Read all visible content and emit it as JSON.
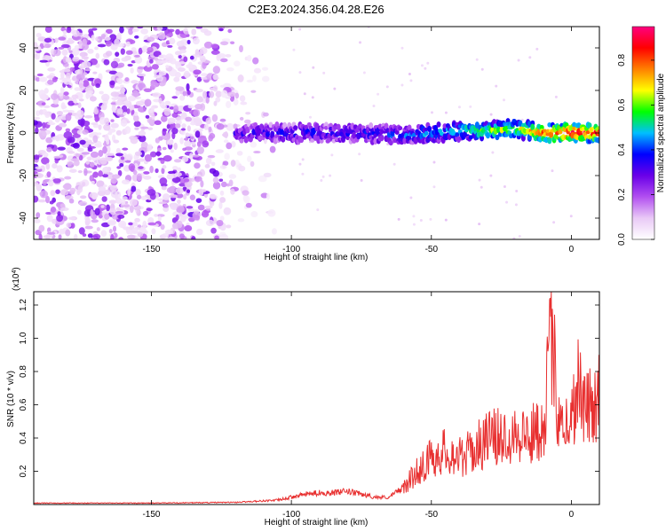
{
  "title": "C2E3.2024.356.04.28.E26",
  "chart_data": [
    {
      "type": "heatmap",
      "title": "C2E3.2024.356.04.28.E26",
      "xlabel": "Height of straight line (km)",
      "ylabel": "Frequency (Hz)",
      "xlim": [
        -192,
        10
      ],
      "ylim": [
        -50,
        50
      ],
      "xticks": [
        -150,
        -100,
        -50,
        0
      ],
      "yticks": [
        -40,
        -20,
        0,
        20,
        40
      ],
      "colorbar": {
        "label": "Normalized spectral amplitude",
        "range": [
          0,
          0.95
        ],
        "ticks": [
          0.0,
          0.2,
          0.4,
          0.6,
          0.8
        ],
        "tick_labels": [
          "0.0",
          "0.2",
          "0.4",
          "0.6",
          "0.8"
        ],
        "colors": [
          "#ffffff",
          "#e9c9f6",
          "#b24ff0",
          "#6a00e8",
          "#0000ff",
          "#00bfff",
          "#00ff00",
          "#ffff00",
          "#ff8000",
          "#ff0000",
          "#ff0080"
        ]
      },
      "ridge": {
        "description_values": "dominant frequency track near 0 Hz",
        "x": [
          -120,
          -100,
          -80,
          -60,
          -50,
          -40,
          -30,
          -20,
          -10,
          0,
          10
        ],
        "y": [
          0,
          0,
          0,
          -1,
          0,
          1,
          1,
          2,
          0,
          0,
          0
        ],
        "amplitude": [
          0.3,
          0.35,
          0.35,
          0.4,
          0.45,
          0.5,
          0.6,
          0.65,
          0.8,
          0.9,
          0.85
        ]
      },
      "scatter_region": {
        "x": [
          -192,
          -105
        ],
        "y": [
          -50,
          50
        ],
        "amplitude": [
          0.05,
          0.3
        ]
      }
    },
    {
      "type": "line",
      "xlabel": "Height of straight line (km)",
      "ylabel": "SNR (10 * v/v)",
      "y_scale_label": "(x10",
      "y_scale_exponent": "4",
      "y_scale_suffix": ")",
      "xlim": [
        -192,
        10
      ],
      "ylim": [
        0,
        1.28
      ],
      "xticks": [
        -150,
        -100,
        -50,
        0
      ],
      "yticks": [
        0.2,
        0.4,
        0.6,
        0.8,
        1.0,
        1.2
      ],
      "ytick_labels": [
        "0.2",
        "0.4",
        "0.6",
        "0.8",
        "1.0",
        "1.2"
      ],
      "series": [
        {
          "color": "#e83030",
          "x": [
            -192,
            -150,
            -120,
            -105,
            -100,
            -95,
            -90,
            -85,
            -80,
            -75,
            -70,
            -65,
            -60,
            -55,
            -50,
            -45,
            -40,
            -35,
            -30,
            -25,
            -20,
            -15,
            -10,
            -7,
            -5,
            -2,
            0,
            2,
            5,
            8,
            10
          ],
          "y": [
            0.01,
            0.01,
            0.015,
            0.03,
            0.05,
            0.07,
            0.08,
            0.08,
            0.09,
            0.07,
            0.05,
            0.05,
            0.12,
            0.25,
            0.35,
            0.4,
            0.35,
            0.4,
            0.5,
            0.5,
            0.55,
            0.5,
            0.6,
            1.25,
            0.75,
            0.6,
            0.6,
            0.95,
            0.7,
            0.75,
            0.85
          ]
        }
      ]
    }
  ]
}
